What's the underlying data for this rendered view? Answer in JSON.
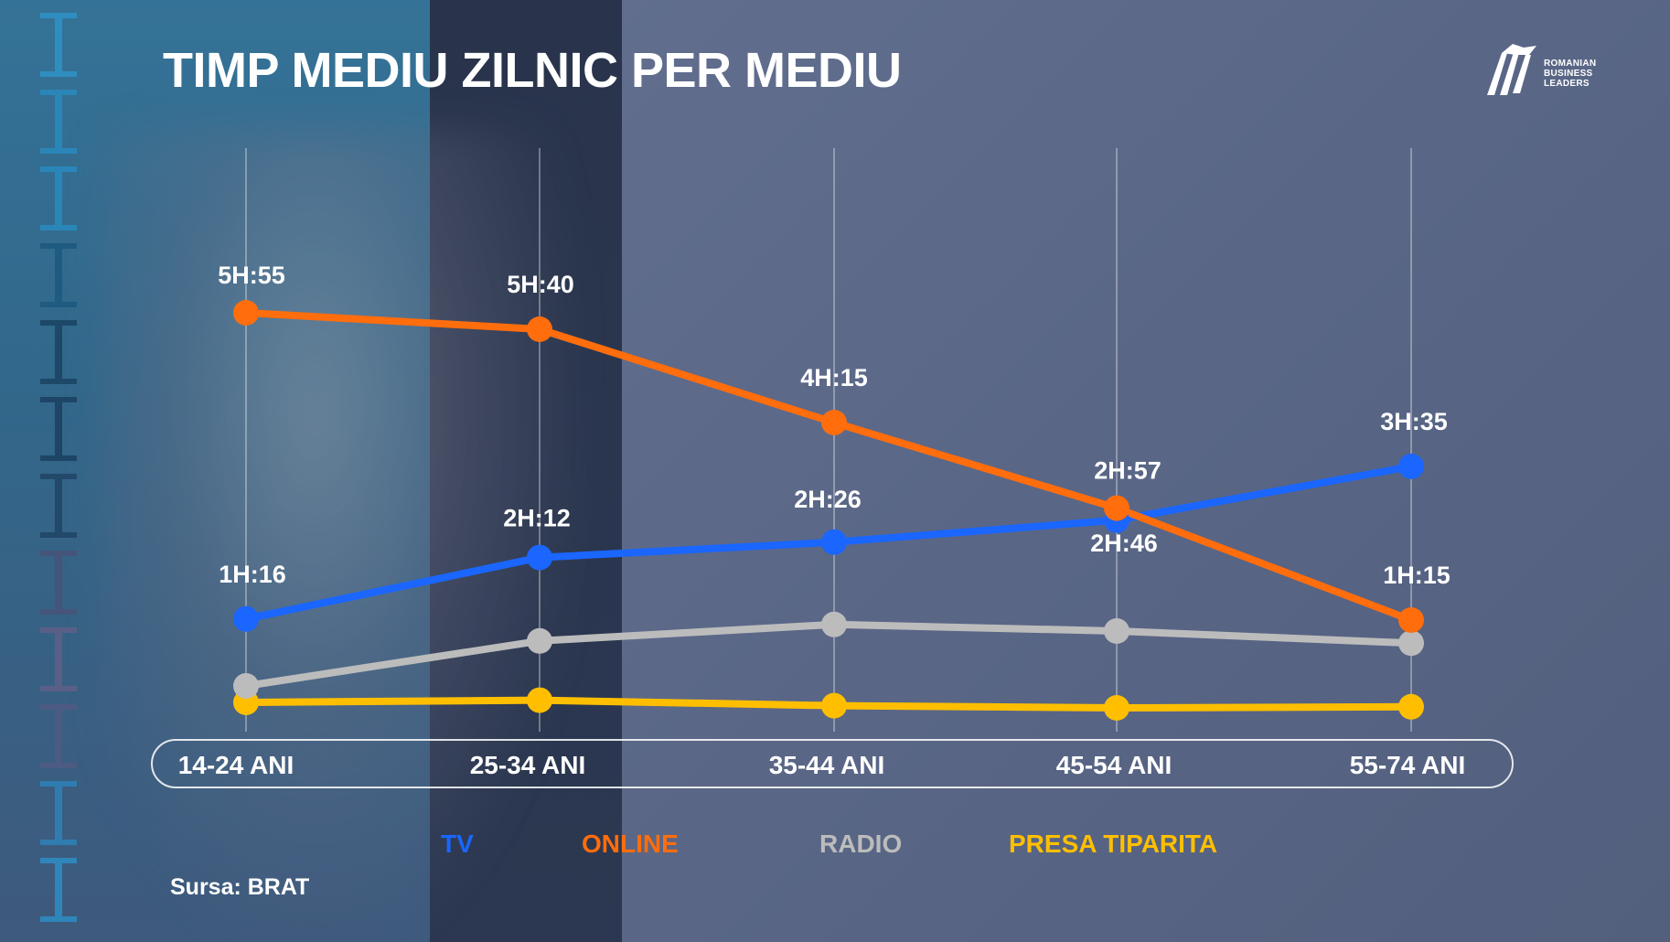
{
  "title": "TIMP MEDIU ZILNIC PER MEDIU",
  "logo": {
    "line1": "ROMANIAN",
    "line2": "BUSINESS",
    "line3": "LEADERS"
  },
  "source": "Sursa: BRAT",
  "colors": {
    "tv": "#1a66ff",
    "online": "#ff6d0d",
    "radio": "#bcbcbc",
    "print": "#ffbf00"
  },
  "legend": {
    "tv": "TV",
    "online": "ONLINE",
    "radio": "RADIO",
    "print": "PRESA TIPARITA"
  },
  "chart_data": {
    "type": "line",
    "title": "TIMP MEDIU ZILNIC PER MEDIU",
    "xlabel": "",
    "ylabel": "",
    "categories": [
      "14-24 ANI",
      "25-34 ANI",
      "35-44 ANI",
      "45-54 ANI",
      "55-74 ANI"
    ],
    "grid": "vertical",
    "legend_position": "bottom",
    "ylim": [
      0,
      360
    ],
    "series": [
      {
        "name": "TV",
        "color": "#1a66ff",
        "values": [
          76,
          132,
          146,
          166,
          215
        ],
        "labels": [
          "1H:16",
          "2H:12",
          "2H:26",
          "2H:46",
          "3H:35"
        ]
      },
      {
        "name": "ONLINE",
        "color": "#ff6d0d",
        "values": [
          355,
          340,
          255,
          177,
          75
        ],
        "labels": [
          "5H:55",
          "5H:40",
          "4H:15",
          "2H:57",
          "1H:15"
        ]
      },
      {
        "name": "RADIO",
        "color": "#bcbcbc",
        "values": [
          15,
          56,
          71,
          65,
          54
        ],
        "labels": []
      },
      {
        "name": "PRESA TIPARITA",
        "color": "#ffbf00",
        "values": [
          0,
          2,
          -3,
          -5,
          -4
        ],
        "labels": []
      }
    ]
  }
}
